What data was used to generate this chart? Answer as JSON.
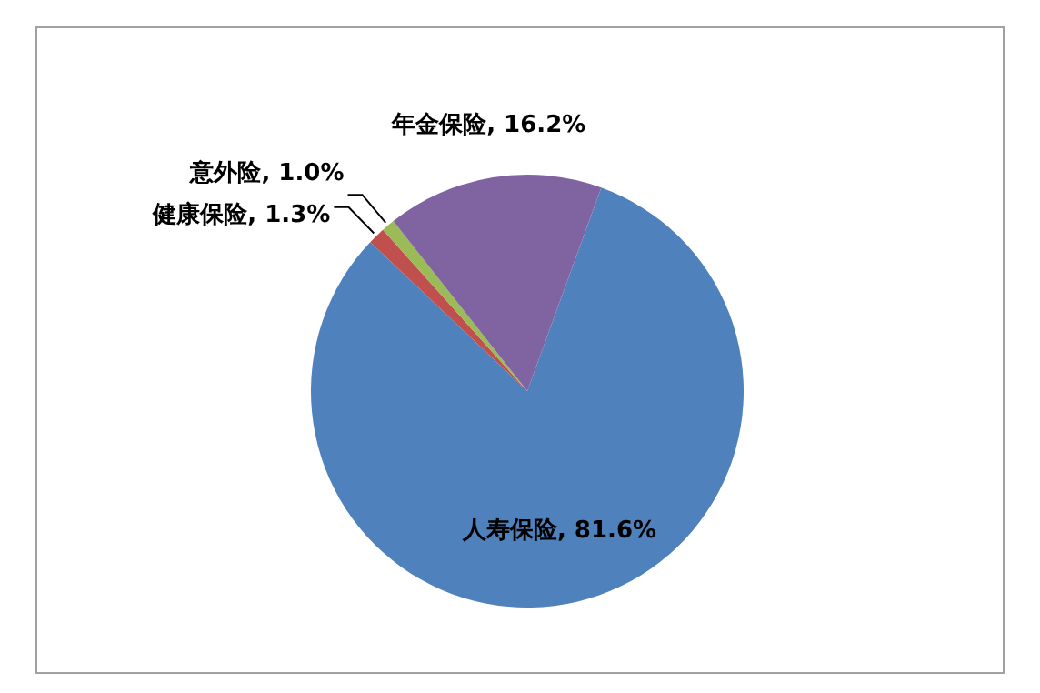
{
  "chart_data": {
    "type": "pie",
    "categories": [
      "人寿保险",
      "健康保险",
      "意外险",
      "年金保险"
    ],
    "values": [
      81.6,
      1.3,
      1.0,
      16.2
    ],
    "value_labels": [
      "81.6%",
      "1.3%",
      "1.0%",
      "16.2%"
    ],
    "colors": [
      "#4f81bd",
      "#c0504d",
      "#9bbb59",
      "#8064a2"
    ]
  }
}
